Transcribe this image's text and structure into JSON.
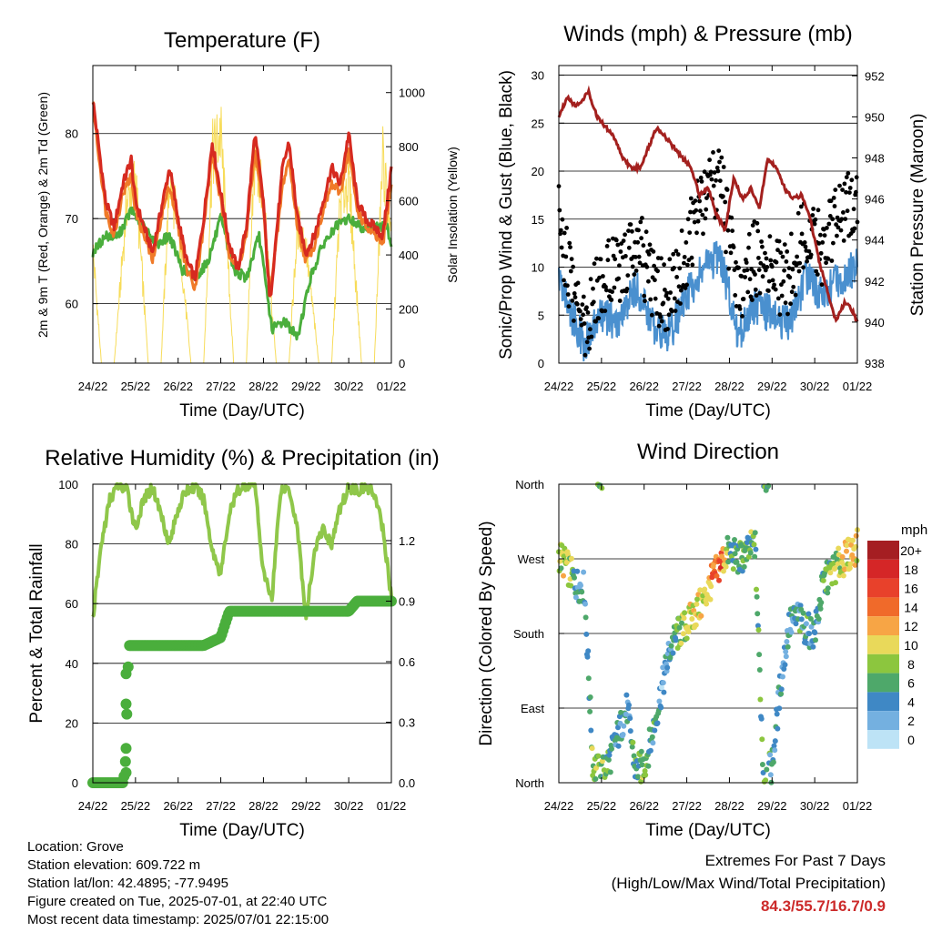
{
  "panels": {
    "temperature": {
      "title": "Temperature (F)",
      "xlabel": "Time (Day/UTC)",
      "ylabel_left": "2m & 9m T (Red, Orange) & 2m Td (Green)",
      "ylabel_right": "Solar Insolation (Yellow)"
    },
    "winds": {
      "title": "Winds (mph) & Pressure (mb)",
      "xlabel": "Time (Day/UTC)",
      "ylabel_left": "Sonic/Prop Wind & Gust (Blue, Black)",
      "ylabel_right": "Station Pressure (Maroon)"
    },
    "humidity": {
      "title": "Relative Humidity (%) & Precipitation (in)",
      "xlabel": "Time (Day/UTC)",
      "ylabel_left": "Percent & Total Rainfall"
    },
    "direction": {
      "title": "Wind Direction",
      "xlabel": "Time (Day/UTC)",
      "ylabel_left": "Direction (Colored By Speed)"
    }
  },
  "legend": {
    "unit": "mph",
    "labels": [
      "20+",
      "18",
      "16",
      "14",
      "12",
      "10",
      "8",
      "6",
      "4",
      "2",
      "0"
    ],
    "colors": [
      "#a51e22",
      "#d52627",
      "#e8412b",
      "#f06a2a",
      "#f7a545",
      "#e9d95a",
      "#8cc63e",
      "#4ea86a",
      "#3f88c5",
      "#74b0e0",
      "#bde3f6"
    ]
  },
  "info": {
    "location": "Location: Grove",
    "elevation": "Station elevation: 609.722 m",
    "latlon": "Station lat/lon: 42.4895; -77.9495",
    "created": "Figure created on Tue, 2025-07-01, at 22:40 UTC",
    "timestamp": "Most recent data timestamp: 2025/07/01 22:15:00"
  },
  "extremes": {
    "title": "Extremes For Past 7 Days",
    "subtitle": "(High/Low/Max Wind/Total Precipitation)",
    "values": "84.3/55.7/16.7/0.9"
  },
  "colors": {
    "temp2m": "#d62a20",
    "temp9m": "#f07a28",
    "dewpoint": "#4aae3c",
    "solar": "#f7dc5a",
    "wind": "#4a90cf",
    "gust": "#000000",
    "pressure": "#a3201e",
    "humidity": "#8fc74a",
    "precip": "#4aae3c"
  },
  "chart_data": [
    {
      "type": "line",
      "panel": "temperature",
      "x_ticks": [
        "24/22",
        "25/22",
        "26/22",
        "27/22",
        "28/22",
        "29/22",
        "30/22",
        "01/22"
      ],
      "x_range_days": [
        0,
        7
      ],
      "ylim": [
        53,
        88
      ],
      "yticks": [
        60,
        70,
        80
      ],
      "y2lim": [
        0,
        1100
      ],
      "y2ticks": [
        0,
        200,
        400,
        600,
        800,
        1000
      ],
      "series": [
        {
          "name": "2m T",
          "x": [
            0,
            0.1,
            0.3,
            0.5,
            0.7,
            0.9,
            1.0,
            1.2,
            1.4,
            1.6,
            1.8,
            2.0,
            2.2,
            2.4,
            2.6,
            2.8,
            3.0,
            3.2,
            3.4,
            3.6,
            3.8,
            4.0,
            4.15,
            4.3,
            4.45,
            4.6,
            4.8,
            5.0,
            5.2,
            5.4,
            5.6,
            5.8,
            6.0,
            6.2,
            6.4,
            6.6,
            6.8,
            7.0
          ],
          "values": [
            84,
            80,
            72,
            69,
            74,
            77,
            72,
            69,
            66,
            71,
            76,
            70,
            65,
            63,
            70,
            79,
            73,
            67,
            64,
            69,
            80,
            72,
            60,
            68,
            76,
            79,
            70,
            66,
            68,
            72,
            76,
            74,
            80,
            72,
            70,
            69,
            68,
            76
          ]
        },
        {
          "name": "9m T",
          "x": [
            0,
            0.1,
            0.3,
            0.5,
            0.7,
            0.9,
            1.0,
            1.2,
            1.4,
            1.6,
            1.8,
            2.0,
            2.2,
            2.4,
            2.6,
            2.8,
            3.0,
            3.2,
            3.4,
            3.6,
            3.8,
            4.0,
            4.15,
            4.3,
            4.45,
            4.6,
            4.8,
            5.0,
            5.2,
            5.4,
            5.6,
            5.8,
            6.0,
            6.2,
            6.4,
            6.6,
            6.8,
            7.0
          ],
          "values": [
            84,
            79,
            71,
            68,
            73,
            75,
            71,
            68,
            65,
            70,
            74,
            69,
            64,
            62,
            69,
            78,
            72,
            66,
            64,
            68,
            78,
            71,
            61,
            67,
            74,
            77,
            69,
            65,
            67,
            71,
            74,
            73,
            78,
            71,
            69,
            68,
            67,
            74
          ]
        },
        {
          "name": "2m Td",
          "x": [
            0,
            0.3,
            0.6,
            0.9,
            1.2,
            1.5,
            1.8,
            2.1,
            2.4,
            2.7,
            3.0,
            3.3,
            3.6,
            3.9,
            4.2,
            4.5,
            4.8,
            5.1,
            5.4,
            5.7,
            6.0,
            6.3,
            6.6,
            6.9,
            7.0
          ],
          "values": [
            66,
            68,
            68,
            71,
            69,
            67,
            68,
            64,
            63,
            65,
            70,
            64,
            63,
            68,
            57,
            58,
            56,
            63,
            67,
            69,
            70,
            69,
            69,
            69,
            67
          ]
        },
        {
          "name": "Solar Insolation",
          "axis": "right",
          "x": [
            0,
            0.2,
            0.5,
            0.8,
            1.0,
            1.3,
            1.6,
            1.8,
            2.0,
            2.3,
            2.6,
            2.8,
            3.0,
            3.3,
            3.6,
            3.8,
            4.0,
            4.3,
            4.6,
            4.8,
            5.0,
            5.3,
            5.6,
            5.8,
            6.0,
            6.3,
            6.6,
            6.8,
            7.0
          ],
          "values": [
            500,
            0,
            0,
            700,
            800,
            0,
            0,
            800,
            600,
            0,
            0,
            900,
            1000,
            0,
            0,
            900,
            700,
            0,
            0,
            600,
            500,
            0,
            0,
            700,
            800,
            0,
            0,
            900,
            500
          ]
        }
      ]
    },
    {
      "type": "scatter",
      "panel": "winds",
      "x_ticks": [
        "24/22",
        "25/22",
        "26/22",
        "27/22",
        "28/22",
        "29/22",
        "30/22",
        "01/22"
      ],
      "x_range_days": [
        0,
        7
      ],
      "ylim": [
        0,
        31
      ],
      "yticks": [
        0,
        5,
        10,
        15,
        20,
        25,
        30
      ],
      "y2lim": [
        938,
        952.5
      ],
      "y2ticks": [
        938,
        940,
        942,
        944,
        946,
        948,
        950,
        952
      ],
      "series": [
        {
          "name": "Sonic/Prop Wind",
          "x": [
            0,
            0.3,
            0.6,
            1.0,
            1.4,
            1.8,
            2.2,
            2.6,
            3.0,
            3.4,
            3.8,
            4.2,
            4.6,
            5.0,
            5.4,
            5.8,
            6.2,
            6.6,
            7.0
          ],
          "values": [
            9,
            5,
            2,
            5,
            4,
            8,
            4,
            3,
            7,
            10,
            11,
            3,
            6,
            5,
            4,
            9,
            7,
            9,
            10
          ]
        },
        {
          "name": "Gust",
          "x": [
            0,
            0.3,
            0.6,
            1.0,
            1.4,
            1.8,
            2.2,
            2.6,
            3.0,
            3.4,
            3.8,
            4.2,
            4.6,
            5.0,
            5.4,
            5.8,
            6.2,
            6.6,
            7.0
          ],
          "values": [
            15,
            8,
            4,
            9,
            10,
            13,
            8,
            7,
            12,
            17,
            19,
            7,
            11,
            9,
            9,
            14,
            12,
            15,
            17
          ]
        },
        {
          "name": "Station Pressure",
          "axis": "right",
          "x": [
            0,
            0.2,
            0.4,
            0.7,
            0.9,
            1.1,
            1.3,
            1.5,
            1.7,
            1.9,
            2.1,
            2.3,
            2.5,
            2.7,
            2.9,
            3.1,
            3.3,
            3.5,
            3.7,
            3.9,
            4.1,
            4.3,
            4.5,
            4.7,
            4.9,
            5.1,
            5.3,
            5.5,
            5.7,
            5.9,
            6.1,
            6.3,
            6.5,
            6.7,
            6.9,
            7.0
          ],
          "values": [
            950,
            951,
            950.5,
            951.2,
            950,
            949.5,
            949,
            948,
            947.5,
            947.5,
            948.5,
            949.5,
            949,
            948.5,
            948,
            947.5,
            946.2,
            946.6,
            945.2,
            944.5,
            947,
            946,
            946.5,
            945.5,
            948,
            947.5,
            946.5,
            946,
            946.2,
            945,
            943,
            941.5,
            940,
            941,
            940.5,
            940
          ]
        }
      ]
    },
    {
      "type": "line",
      "panel": "humidity",
      "x_ticks": [
        "24/22",
        "25/22",
        "26/22",
        "27/22",
        "28/22",
        "29/22",
        "30/22",
        "01/22"
      ],
      "x_range_days": [
        0,
        7
      ],
      "ylim": [
        0,
        100
      ],
      "yticks": [
        0,
        20,
        40,
        60,
        80,
        100
      ],
      "y2lim": [
        0,
        1.4795
      ],
      "y2ticks": [
        0.0,
        0.3,
        0.6,
        0.9,
        1.2
      ],
      "series": [
        {
          "name": "Relative Humidity",
          "x": [
            0,
            0.2,
            0.4,
            0.6,
            0.8,
            1.0,
            1.2,
            1.4,
            1.6,
            1.8,
            2.0,
            2.2,
            2.4,
            2.6,
            2.8,
            3.0,
            3.2,
            3.4,
            3.6,
            3.8,
            4.0,
            4.2,
            4.4,
            4.6,
            4.8,
            5.0,
            5.2,
            5.4,
            5.6,
            5.8,
            6.0,
            6.2,
            6.4,
            6.6,
            6.8,
            7.0
          ],
          "values": [
            55,
            80,
            95,
            100,
            98,
            85,
            95,
            99,
            90,
            80,
            92,
            98,
            99,
            95,
            78,
            70,
            90,
            98,
            100,
            100,
            70,
            62,
            98,
            99,
            85,
            55,
            78,
            85,
            80,
            92,
            99,
            98,
            99,
            97,
            85,
            62
          ]
        },
        {
          "name": "Total Precipitation",
          "axis": "right",
          "x": [
            0,
            0.7,
            0.75,
            0.78,
            0.8,
            0.82,
            0.85,
            1.2,
            2.6,
            2.8,
            3.0,
            3.2,
            4.5,
            6.0,
            6.2,
            7.0
          ],
          "values": [
            0.0,
            0.0,
            0.05,
            0.17,
            0.39,
            0.54,
            0.68,
            0.68,
            0.68,
            0.7,
            0.72,
            0.85,
            0.85,
            0.85,
            0.9,
            0.9
          ]
        }
      ]
    },
    {
      "type": "scatter",
      "panel": "direction",
      "x_ticks": [
        "24/22",
        "25/22",
        "26/22",
        "27/22",
        "28/22",
        "29/22",
        "30/22",
        "01/22"
      ],
      "x_range_days": [
        0,
        7
      ],
      "ylim": [
        0,
        360
      ],
      "yticks": [
        "North",
        "East",
        "South",
        "West",
        "North"
      ],
      "series": [
        {
          "name": "Wind Direction",
          "x": [
            0,
            0.2,
            0.4,
            0.6,
            0.8,
            1.0,
            1.2,
            1.4,
            1.6,
            1.8,
            2.0,
            2.2,
            2.4,
            2.6,
            2.8,
            3.0,
            3.2,
            3.4,
            3.6,
            3.8,
            4.0,
            4.2,
            4.4,
            4.6,
            4.8,
            5.0,
            5.2,
            5.4,
            5.6,
            5.8,
            6.0,
            6.2,
            6.4,
            6.6,
            6.8,
            7.0
          ],
          "values": [
            275,
            260,
            240,
            235,
            20,
            10,
            30,
            60,
            90,
            15,
            20,
            60,
            110,
            160,
            180,
            190,
            205,
            220,
            245,
            265,
            280,
            270,
            275,
            290,
            5,
            20,
            120,
            190,
            200,
            185,
            180,
            240,
            255,
            265,
            275,
            285
          ],
          "speed": [
            8,
            10,
            4,
            4,
            8,
            8,
            5,
            4,
            3,
            6,
            7,
            5,
            3,
            4,
            7,
            9,
            9,
            10,
            13,
            15,
            6,
            5,
            6,
            7,
            6,
            4,
            3,
            4,
            5,
            5,
            4,
            6,
            7,
            9,
            10,
            11
          ]
        }
      ]
    }
  ]
}
